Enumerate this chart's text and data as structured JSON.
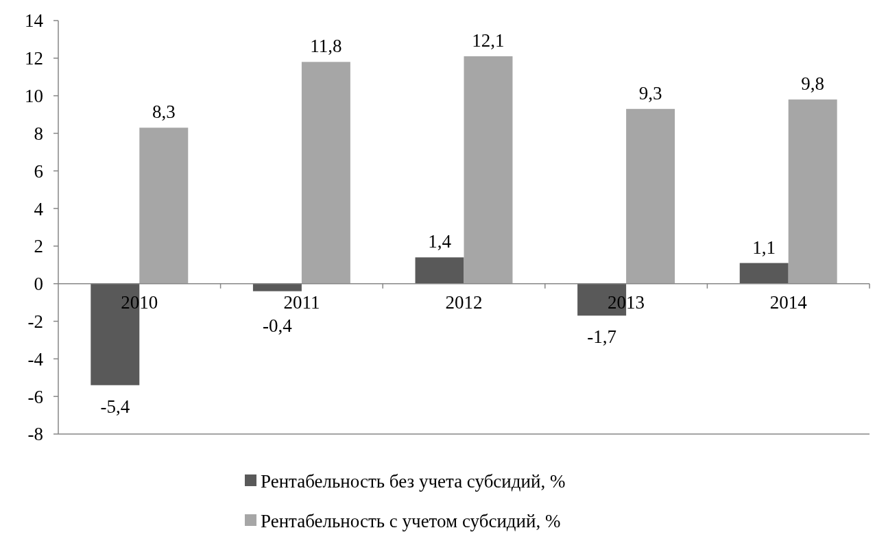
{
  "chart_data": {
    "type": "bar",
    "categories": [
      "2010",
      "2011",
      "2012",
      "2013",
      "2014"
    ],
    "series": [
      {
        "name": "Рентабельность без учета субсидий, %",
        "color": "#595959",
        "values": [
          -5.4,
          -0.4,
          1.4,
          -1.7,
          1.1
        ],
        "value_labels": [
          "-5,4",
          "-0,4",
          "1,4",
          "-1,7",
          "1,1"
        ]
      },
      {
        "name": "Рентабельность с учетом субсидий, %",
        "color": "#a6a6a6",
        "values": [
          8.3,
          11.8,
          12.1,
          9.3,
          9.8
        ],
        "value_labels": [
          "8,3",
          "11,8",
          "12,1",
          "9,3",
          "9,8"
        ]
      }
    ],
    "ylim": [
      -8,
      14
    ],
    "yticks": [
      -8,
      -6,
      -4,
      -2,
      0,
      2,
      4,
      6,
      8,
      10,
      12,
      14
    ],
    "grid": false,
    "legend": "bottom"
  }
}
